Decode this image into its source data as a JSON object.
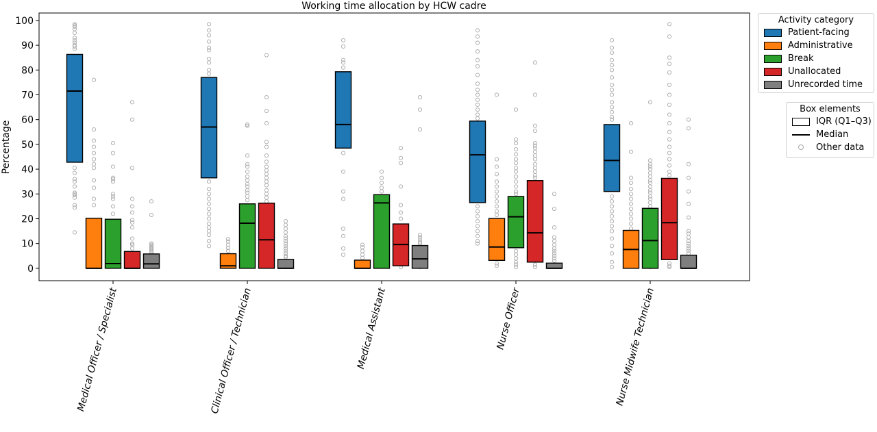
{
  "chart_data": {
    "type": "box",
    "title": "Working time allocation by HCW cadre",
    "ylabel": "Percentage",
    "xlabel": "",
    "ylim": [
      -5,
      103
    ],
    "yticks": [
      0,
      10,
      20,
      30,
      40,
      50,
      60,
      70,
      80,
      90,
      100
    ],
    "categories": [
      "Medical Officer / Specialist",
      "Clinical Officer / Technician",
      "Medical Assistant",
      "Nurse Officer",
      "Nurse Midwife Technician"
    ],
    "series": [
      {
        "name": "Patient-facing",
        "color": "#1f77b4",
        "boxes": [
          {
            "q1": 42.8,
            "median": 71.5,
            "q3": 86.3
          },
          {
            "q1": 36.5,
            "median": 57.0,
            "q3": 77.0
          },
          {
            "q1": 48.5,
            "median": 58.0,
            "q3": 79.3
          },
          {
            "q1": 26.5,
            "median": 45.8,
            "q3": 59.4
          },
          {
            "q1": 31.0,
            "median": 43.5,
            "q3": 58.0
          }
        ],
        "points": [
          [
            98.5,
            98,
            97.5,
            96.5,
            95,
            93,
            92,
            91,
            90,
            89.5,
            88.5,
            40.5,
            38.5,
            36,
            35,
            33,
            30.5,
            30,
            29.5,
            28.5,
            25.5,
            24.5,
            14.5
          ],
          [
            98.5,
            96,
            94,
            91.5,
            89,
            88,
            84.5,
            83,
            80,
            78.5,
            35,
            32,
            30,
            28,
            26,
            24,
            22,
            20,
            18,
            16.5,
            15,
            13.5,
            11,
            9
          ],
          [
            92,
            89.5,
            84,
            83,
            81,
            46.5,
            39,
            31,
            28,
            16,
            13,
            8,
            5.5
          ],
          [
            96,
            93.5,
            91,
            87.5,
            84,
            81.5,
            78,
            74.5,
            72,
            70,
            68,
            66,
            64,
            62,
            60.5,
            25,
            23,
            21,
            19,
            17,
            15,
            13,
            11,
            10
          ],
          [
            92,
            89,
            87,
            84,
            82,
            80,
            77,
            74,
            72,
            70,
            67,
            65,
            63,
            61,
            60,
            29,
            27,
            25,
            23,
            21,
            19,
            17,
            15,
            12,
            9,
            6,
            2.5,
            0.5
          ]
        ]
      },
      {
        "name": "Administrative",
        "color": "#ff7f0e",
        "boxes": [
          {
            "q1": 0,
            "median": 0,
            "q3": 20.2
          },
          {
            "q1": 0,
            "median": 1.0,
            "q3": 5.9
          },
          {
            "q1": 0,
            "median": 0,
            "q3": 3.3
          },
          {
            "q1": 3.2,
            "median": 8.6,
            "q3": 20.1
          },
          {
            "q1": 0,
            "median": 7.6,
            "q3": 15.3
          }
        ],
        "points": [
          [
            76,
            56,
            51.5,
            49,
            46.5,
            44,
            42,
            40.5,
            35.5,
            32.5,
            28,
            25.5
          ],
          [
            11.8,
            10.8,
            9.5,
            8.2,
            7
          ],
          [
            9.5,
            8.5,
            7,
            5.5,
            4.2
          ],
          [
            70,
            44,
            41,
            38,
            35,
            33,
            31,
            29,
            27,
            25,
            23,
            21.5,
            2,
            1
          ],
          [
            58.5,
            47,
            36.5,
            34.5,
            32,
            30,
            28,
            26,
            24,
            22,
            20,
            18,
            16
          ]
        ]
      },
      {
        "name": "Break",
        "color": "#2ca02c",
        "boxes": [
          {
            "q1": 0,
            "median": 1.9,
            "q3": 19.8
          },
          {
            "q1": 0,
            "median": 18.2,
            "q3": 26.0
          },
          {
            "q1": 0,
            "median": 26.4,
            "q3": 29.7
          },
          {
            "q1": 8.3,
            "median": 20.8,
            "q3": 29.0
          },
          {
            "q1": 0,
            "median": 11.2,
            "q3": 24.2
          }
        ],
        "points": [
          [
            50.5,
            46.5,
            41,
            36.5,
            36,
            35,
            30,
            29,
            28,
            25,
            22
          ],
          [
            58,
            57.5,
            45.5,
            42,
            41,
            39,
            37,
            35.5,
            34,
            33,
            31.5,
            30.5,
            29,
            27.5
          ],
          [
            39,
            36.5,
            34.5,
            32.5,
            31
          ],
          [
            64,
            52,
            50.5,
            48,
            46,
            44,
            42.5,
            40.5,
            39,
            37,
            35,
            33,
            31,
            30,
            7,
            5.5,
            4,
            2.5,
            1.5,
            0.5
          ],
          [
            67,
            43.5,
            42,
            41,
            40,
            38.5,
            37,
            35.5,
            34.5,
            33,
            31.5,
            30.5,
            29,
            28,
            26.5,
            25,
            0.5
          ]
        ]
      },
      {
        "name": "Unallocated",
        "color": "#d62728",
        "boxes": [
          {
            "q1": 0,
            "median": 0,
            "q3": 6.8
          },
          {
            "q1": 0,
            "median": 11.5,
            "q3": 26.3
          },
          {
            "q1": 1.0,
            "median": 9.6,
            "q3": 17.9
          },
          {
            "q1": 2.5,
            "median": 14.3,
            "q3": 35.4
          },
          {
            "q1": 3.5,
            "median": 18.4,
            "q3": 36.3
          }
        ],
        "points": [
          [
            67,
            60,
            40.5,
            28,
            25,
            22.5,
            19.5,
            18.5,
            16.5,
            12,
            10,
            9.5,
            8
          ],
          [
            86,
            69,
            63.5,
            58.5,
            51,
            49,
            45.5,
            43,
            41,
            39.5,
            38,
            36.5,
            35,
            33.5,
            31.5,
            30,
            28.5,
            27
          ],
          [
            48.5,
            44.5,
            42.5,
            33,
            25.5,
            22.5,
            20,
            3,
            1.5,
            0.5
          ],
          [
            83,
            70,
            57.5,
            55.5,
            50.5,
            49.5,
            48.5,
            47,
            45.5,
            44,
            42,
            40.5,
            39,
            37.5,
            36.5,
            1.5,
            0.5
          ],
          [
            98.5,
            93.5,
            85,
            82.5,
            79,
            74,
            70,
            66,
            62,
            58.5,
            55,
            52,
            49,
            46.5,
            44,
            41.5,
            39,
            37.5,
            2,
            1,
            0.5
          ]
        ]
      },
      {
        "name": "Unrecorded time",
        "color": "#7f7f7f",
        "boxes": [
          {
            "q1": 0,
            "median": 1.8,
            "q3": 5.8
          },
          {
            "q1": 0,
            "median": 0,
            "q3": 3.6
          },
          {
            "q1": 0,
            "median": 3.8,
            "q3": 9.2
          },
          {
            "q1": 0,
            "median": 0,
            "q3": 2.1
          },
          {
            "q1": 0,
            "median": 0,
            "q3": 5.3
          }
        ],
        "points": [
          [
            27,
            21.5,
            10,
            9.5,
            9,
            8.5,
            8,
            7.5,
            7,
            6.5
          ],
          [
            19,
            17.5,
            16,
            14.5,
            13,
            12,
            11,
            10,
            9,
            8,
            7,
            6,
            5,
            4.5,
            0.5
          ],
          [
            69,
            64,
            56,
            13.5,
            12.5,
            11.5,
            10.5,
            10,
            0.5
          ],
          [
            30,
            24,
            16.5,
            12.5,
            11,
            9.5,
            8,
            7,
            6,
            5,
            4,
            3
          ],
          [
            60,
            56.5,
            42,
            36.5,
            31,
            26,
            20.5,
            15,
            14,
            12.5,
            11,
            10,
            9,
            8,
            7,
            6
          ]
        ]
      }
    ],
    "legend": {
      "title": "Activity category",
      "placement": "outside-right-top"
    },
    "box_legend": {
      "title": "Box elements",
      "items": [
        "IQR (Q1–Q3)",
        "Median",
        "Other data"
      ]
    },
    "grid": false,
    "xtick_rotation": 75,
    "outlier_color": "#b0b0b0"
  }
}
